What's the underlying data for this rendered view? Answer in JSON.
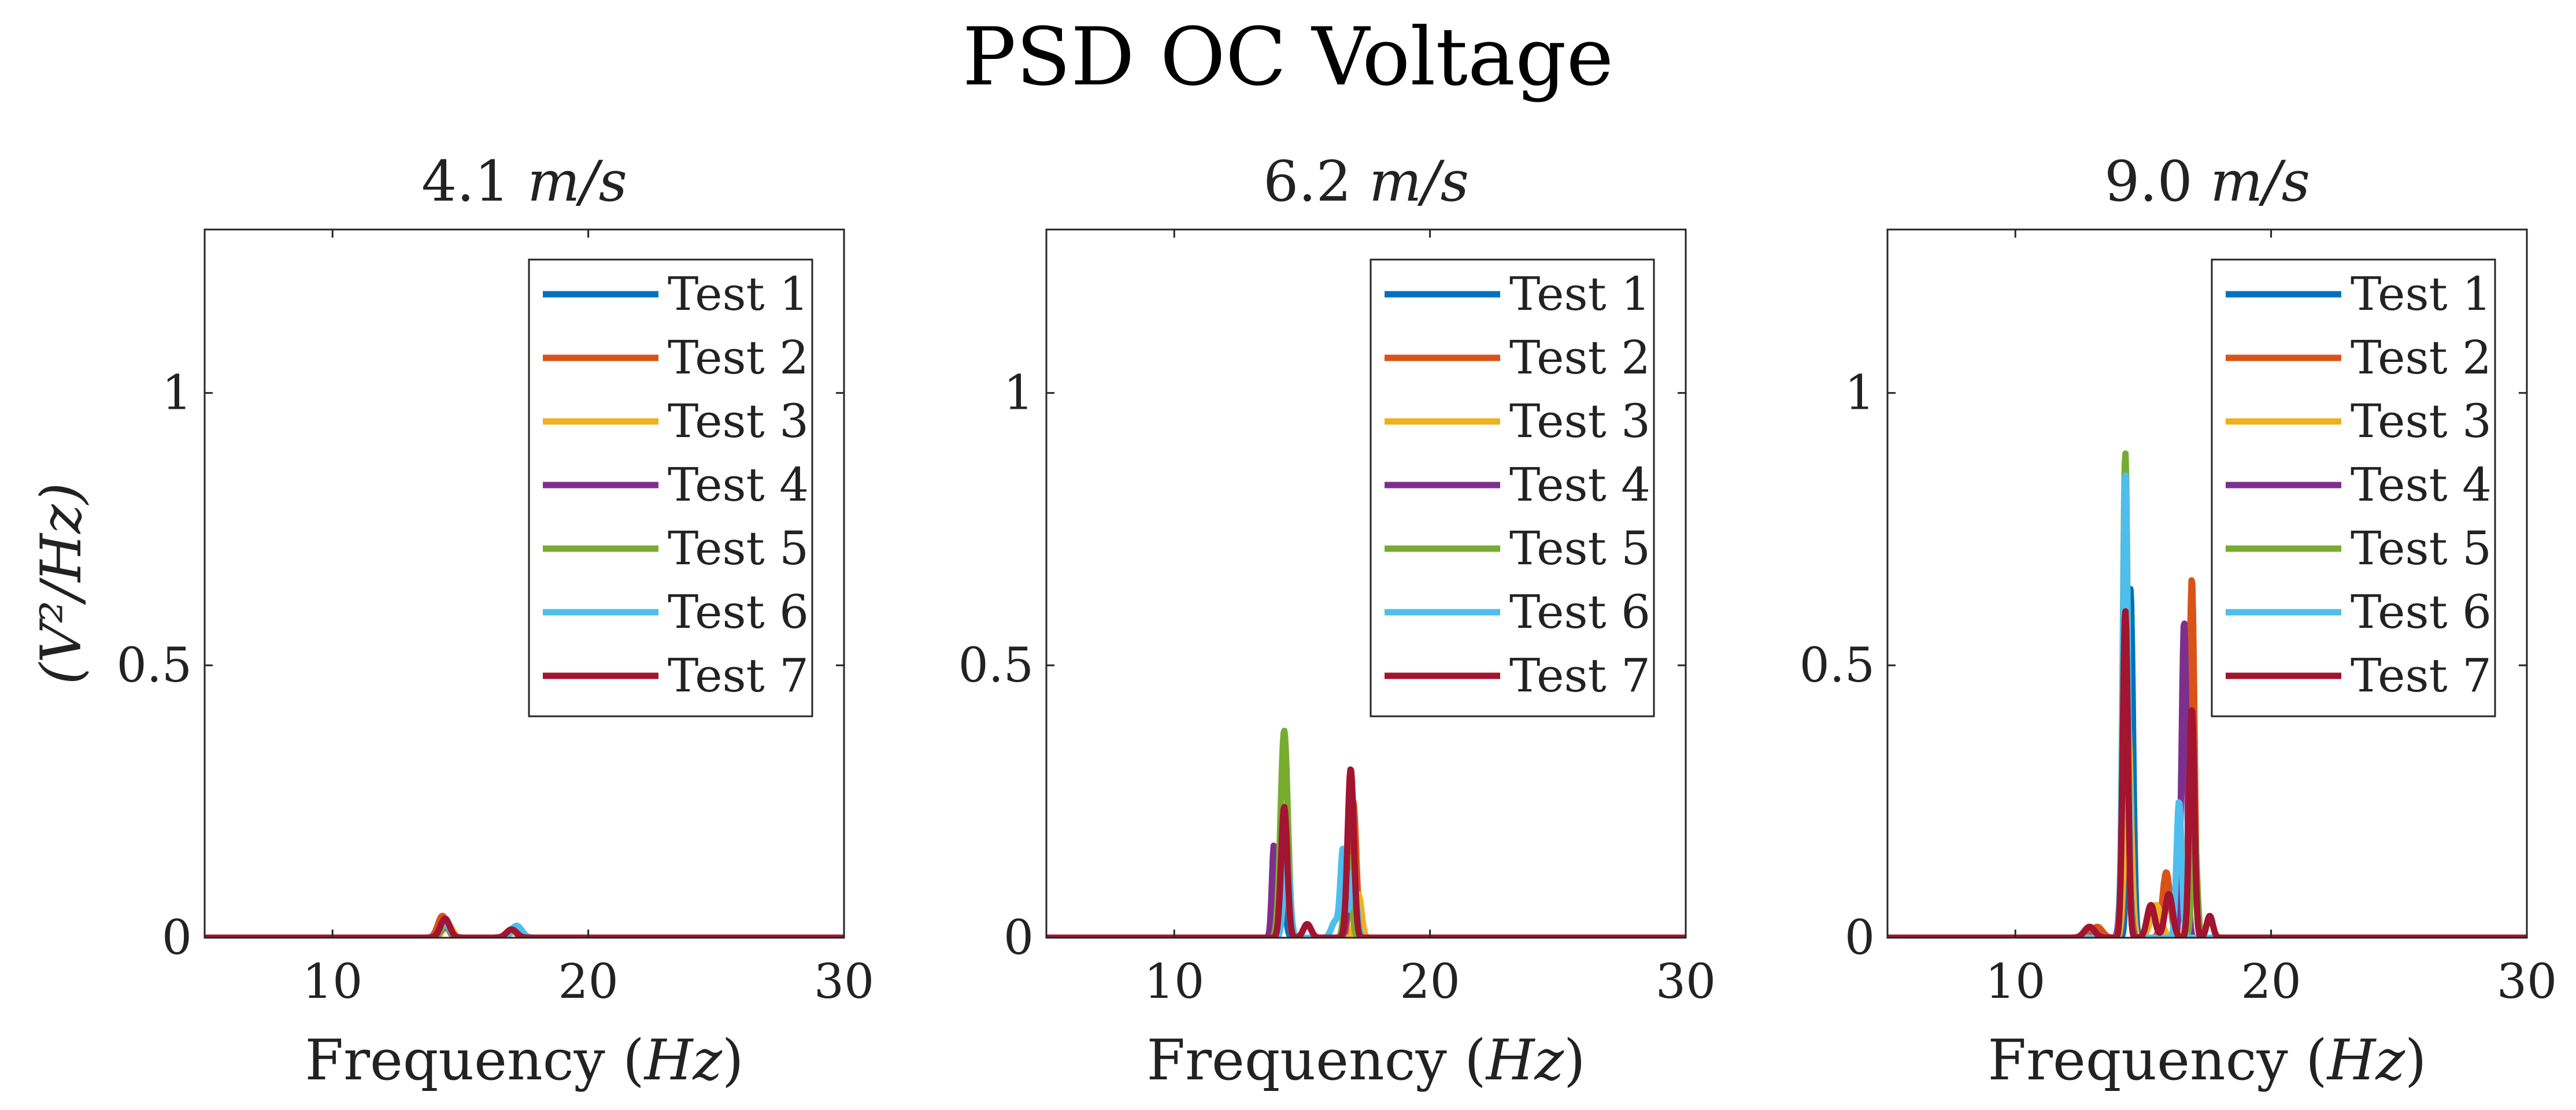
{
  "figure_title": "PSD OC Voltage",
  "chart_data": [
    {
      "type": "line",
      "title_num": "4.1",
      "title_unit": "m/s",
      "xlabel_text": "Frequency",
      "xlabel_unit": "Hz",
      "ylabel": "(V²/Hz)",
      "xlim": [
        5,
        30
      ],
      "ylim": [
        0,
        1.3
      ],
      "xticks": [
        10,
        20,
        30
      ],
      "yticks": [
        0,
        0.5,
        1
      ],
      "xtick_labels": [
        "10",
        "20",
        "30"
      ],
      "ytick_labels": [
        "0",
        "0.5",
        "1"
      ],
      "legend_position": "top-right",
      "series": [
        {
          "name": "Test 1",
          "color": "#0072BD",
          "peaks": [
            [
              14.4,
              0.03,
              0.18
            ],
            [
              17.1,
              0.018,
              0.2
            ]
          ]
        },
        {
          "name": "Test 2",
          "color": "#D95319",
          "peaks": [
            [
              14.3,
              0.04,
              0.18
            ],
            [
              17.0,
              0.012,
              0.2
            ]
          ]
        },
        {
          "name": "Test 3",
          "color": "#EDB120",
          "peaks": [
            [
              14.5,
              0.025,
              0.18
            ],
            [
              17.1,
              0.01,
              0.2
            ]
          ]
        },
        {
          "name": "Test 4",
          "color": "#7E2F8E",
          "peaks": [
            [
              14.4,
              0.02,
              0.18
            ],
            [
              17.0,
              0.015,
              0.2
            ]
          ]
        },
        {
          "name": "Test 5",
          "color": "#77AC30",
          "peaks": [
            [
              14.4,
              0.022,
              0.18
            ],
            [
              17.1,
              0.014,
              0.2
            ]
          ]
        },
        {
          "name": "Test 6",
          "color": "#4DBEEE",
          "peaks": [
            [
              14.4,
              0.028,
              0.18
            ],
            [
              17.2,
              0.022,
              0.2
            ]
          ]
        },
        {
          "name": "Test 7",
          "color": "#A2142F",
          "peaks": [
            [
              14.4,
              0.035,
              0.18
            ],
            [
              17.0,
              0.015,
              0.2
            ]
          ]
        }
      ]
    },
    {
      "type": "line",
      "title_num": "6.2",
      "title_unit": "m/s",
      "xlabel_text": "Frequency",
      "xlabel_unit": "Hz",
      "ylabel": "",
      "xlim": [
        5,
        30
      ],
      "ylim": [
        0,
        1.3
      ],
      "xticks": [
        10,
        20,
        30
      ],
      "yticks": [
        0,
        0.5,
        1
      ],
      "xtick_labels": [
        "10",
        "20",
        "30"
      ],
      "ytick_labels": [
        "0",
        "0.5",
        "1"
      ],
      "legend_position": "top-right",
      "series": [
        {
          "name": "Test 1",
          "color": "#0072BD",
          "peaks": [
            [
              14.2,
              0.12,
              0.12
            ],
            [
              16.9,
              0.2,
              0.12
            ]
          ]
        },
        {
          "name": "Test 2",
          "color": "#D95319",
          "peaks": [
            [
              14.3,
              0.2,
              0.12
            ],
            [
              17.0,
              0.25,
              0.12
            ]
          ]
        },
        {
          "name": "Test 3",
          "color": "#EDB120",
          "peaks": [
            [
              14.3,
              0.18,
              0.12
            ],
            [
              17.2,
              0.08,
              0.12
            ]
          ]
        },
        {
          "name": "Test 4",
          "color": "#7E2F8E",
          "peaks": [
            [
              13.9,
              0.17,
              0.08
            ],
            [
              14.3,
              0.2,
              0.12
            ],
            [
              16.9,
              0.12,
              0.12
            ]
          ]
        },
        {
          "name": "Test 5",
          "color": "#77AC30",
          "peaks": [
            [
              14.3,
              0.38,
              0.14
            ],
            [
              16.8,
              0.15,
              0.12
            ]
          ]
        },
        {
          "name": "Test 6",
          "color": "#4DBEEE",
          "peaks": [
            [
              14.4,
              0.15,
              0.12
            ],
            [
              16.3,
              0.03,
              0.15
            ],
            [
              16.6,
              0.16,
              0.1
            ],
            [
              17.0,
              0.12,
              0.12
            ]
          ]
        },
        {
          "name": "Test 7",
          "color": "#A2142F",
          "peaks": [
            [
              14.3,
              0.24,
              0.12
            ],
            [
              15.2,
              0.025,
              0.15
            ],
            [
              16.9,
              0.31,
              0.12
            ]
          ]
        }
      ]
    },
    {
      "type": "line",
      "title_num": "9.0",
      "title_unit": "m/s",
      "xlabel_text": "Frequency",
      "xlabel_unit": "Hz",
      "ylabel": "",
      "xlim": [
        5,
        30
      ],
      "ylim": [
        0,
        1.3
      ],
      "xticks": [
        10,
        20,
        30
      ],
      "yticks": [
        0,
        0.5,
        1
      ],
      "xtick_labels": [
        "10",
        "20",
        "30"
      ],
      "ytick_labels": [
        "0",
        "0.5",
        "1"
      ],
      "legend_position": "top-right",
      "series": [
        {
          "name": "Test 1",
          "color": "#0072BD",
          "peaks": [
            [
              14.5,
              0.64,
              0.1
            ],
            [
              16.9,
              0.35,
              0.12
            ]
          ]
        },
        {
          "name": "Test 2",
          "color": "#D95319",
          "peaks": [
            [
              13.2,
              0.02,
              0.2
            ],
            [
              14.4,
              0.3,
              0.12
            ],
            [
              15.9,
              0.12,
              0.15
            ],
            [
              16.9,
              0.66,
              0.1
            ]
          ]
        },
        {
          "name": "Test 3",
          "color": "#EDB120",
          "peaks": [
            [
              14.4,
              0.4,
              0.12
            ],
            [
              15.5,
              0.06,
              0.2
            ],
            [
              16.9,
              0.35,
              0.12
            ]
          ]
        },
        {
          "name": "Test 4",
          "color": "#7E2F8E",
          "peaks": [
            [
              14.3,
              0.45,
              0.12
            ],
            [
              16.6,
              0.58,
              0.1
            ]
          ]
        },
        {
          "name": "Test 5",
          "color": "#77AC30",
          "peaks": [
            [
              14.3,
              0.89,
              0.1
            ],
            [
              17.0,
              0.2,
              0.1
            ]
          ]
        },
        {
          "name": "Test 6",
          "color": "#4DBEEE",
          "peaks": [
            [
              14.3,
              0.85,
              0.1
            ],
            [
              16.4,
              0.25,
              0.1
            ]
          ]
        },
        {
          "name": "Test 7",
          "color": "#A2142F",
          "peaks": [
            [
              12.9,
              0.02,
              0.2
            ],
            [
              14.3,
              0.6,
              0.1
            ],
            [
              15.3,
              0.06,
              0.15
            ],
            [
              16.0,
              0.08,
              0.15
            ],
            [
              16.9,
              0.42,
              0.1
            ],
            [
              17.6,
              0.04,
              0.12
            ]
          ]
        }
      ]
    }
  ]
}
